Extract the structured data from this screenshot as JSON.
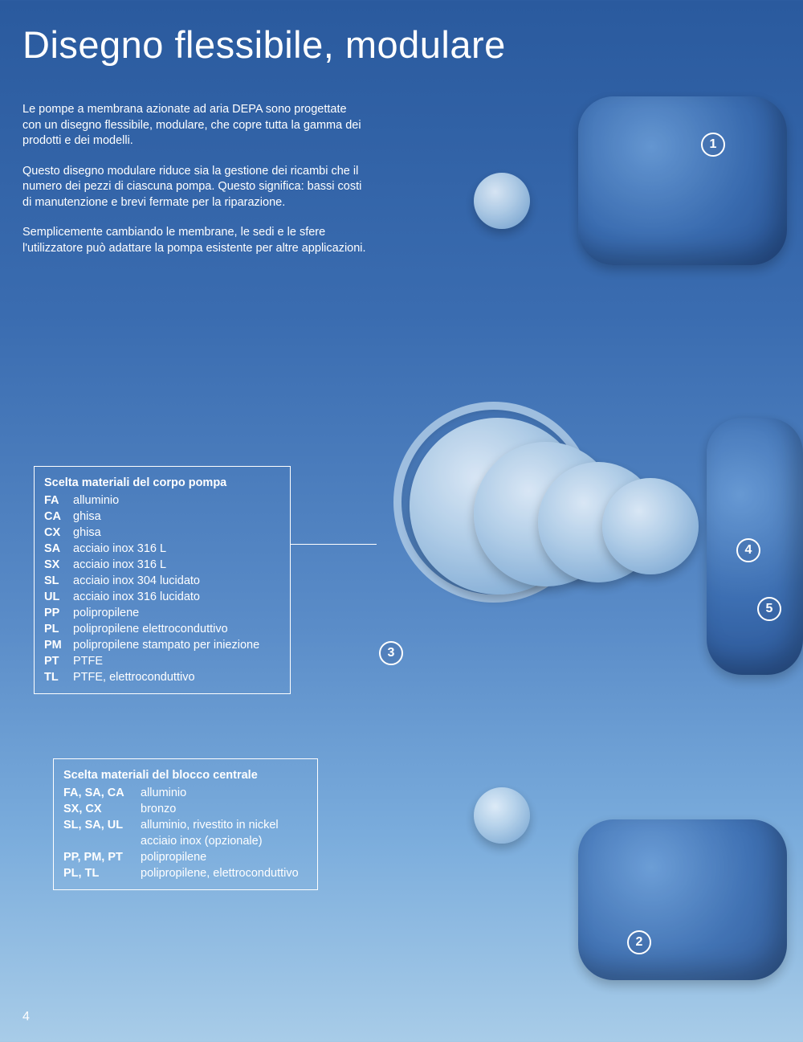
{
  "title": "Disegno flessibile, modulare",
  "page_number": "4",
  "intro_paragraphs": [
    "Le pompe a membrana azionate ad aria DEPA sono progettate con un disegno flessibile, modulare, che copre tutta la gamma dei prodotti e dei modelli.",
    "Questo disegno modulare riduce sia la gestione dei ricambi che il numero dei pezzi di ciascuna pompa. Questo significa: bassi costi di manutenzione e brevi fermate per la riparazione.",
    "Semplicemente cambiando le membrane, le sedi e le sfere l'utilizzatore può adattare la pompa esistente per altre applicazioni."
  ],
  "callouts": {
    "c1": "1",
    "c2": "2",
    "c3": "3",
    "c4": "4",
    "c5": "5"
  },
  "box_pump_body": {
    "title": "Scelta materiali del corpo pompa",
    "rows": [
      {
        "code": "FA",
        "desc": "alluminio"
      },
      {
        "code": "CA",
        "desc": "ghisa"
      },
      {
        "code": "CX",
        "desc": "ghisa"
      },
      {
        "code": "SA",
        "desc": "acciaio inox 316 L"
      },
      {
        "code": "SX",
        "desc": "acciaio inox 316 L"
      },
      {
        "code": "SL",
        "desc": "acciaio inox 304 lucidato"
      },
      {
        "code": "UL",
        "desc": "acciaio inox 316 lucidato"
      },
      {
        "code": "PP",
        "desc": "polipropilene"
      },
      {
        "code": "PL",
        "desc": "polipropilene elettroconduttivo"
      },
      {
        "code": "PM",
        "desc": "polipropilene stampato per iniezione"
      },
      {
        "code": "PT",
        "desc": "PTFE"
      },
      {
        "code": "TL",
        "desc": "PTFE, elettroconduttivo"
      }
    ]
  },
  "box_center_block": {
    "title": "Scelta materiali del blocco centrale",
    "rows": [
      {
        "code": "FA, SA, CA",
        "desc": "alluminio"
      },
      {
        "code": "SX, CX",
        "desc": "bronzo"
      },
      {
        "code": "SL, SA, UL",
        "desc": "alluminio, rivestito in nickel acciaio inox (opzionale)"
      },
      {
        "code": "PP, PM, PT",
        "desc": "polipropilene"
      },
      {
        "code": "PL, TL",
        "desc": "polipropilene, elettroconduttivo"
      }
    ]
  },
  "colors": {
    "text": "#ffffff",
    "box_border": "#ffffff",
    "bg_top": "#2a5a9e",
    "bg_bottom": "#a8cce8"
  }
}
